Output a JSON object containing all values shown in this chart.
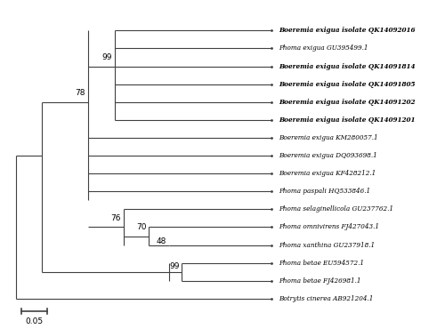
{
  "taxa": [
    {
      "name": "Boeremia exigua isolate QK14092016",
      "bold": true,
      "italic_part": "Boeremia exigua",
      "bold_part": "isolate QK14092016",
      "y": 1
    },
    {
      "name": "Phoma exigua GU395499.1",
      "bold": false,
      "italic_part": "Phoma exigua",
      "bold_part": "GU395499.1",
      "y": 2
    },
    {
      "name": "Boeremia exigua isolate QK14091814",
      "bold": true,
      "italic_part": "Boeremia exigua",
      "bold_part": "isolate QK14091814",
      "y": 3
    },
    {
      "name": "Boeremia exigua isolate QK14091805",
      "bold": true,
      "italic_part": "Boeremia exigua",
      "bold_part": "isolate QK14091805",
      "y": 4
    },
    {
      "name": "Boeremia exigua isolate QK14091202",
      "bold": true,
      "italic_part": "Boeremia exigua",
      "bold_part": "isolate QK14091202",
      "y": 5
    },
    {
      "name": "Boeremia exigua isolate QK14091201",
      "bold": true,
      "italic_part": "Boeremia exigua",
      "bold_part": "isolate QK14091201",
      "y": 6
    },
    {
      "name": "Boeremia exigua KM280057.1",
      "bold": false,
      "italic_part": "Boeremia exigua",
      "bold_part": "KM280057.1",
      "y": 7
    },
    {
      "name": "Boeremia exigua DQ093698.1",
      "bold": false,
      "italic_part": "Boeremia exigua",
      "bold_part": "DQ093698.1",
      "y": 8
    },
    {
      "name": "Boeremia exigua KF428212.1",
      "bold": false,
      "italic_part": "Boeremia exigua",
      "bold_part": "KF428212.1",
      "y": 9
    },
    {
      "name": "Phoma paspali HQ533846.1",
      "bold": false,
      "italic_part": "Phoma paspali",
      "bold_part": "HQ533846.1",
      "y": 10
    },
    {
      "name": "Phoma selaginellicola GU237762.1",
      "bold": false,
      "italic_part": "Phoma selaginellicola",
      "bold_part": "GU237762.1",
      "y": 11
    },
    {
      "name": "Phoma omnivirens FJ427043.1",
      "bold": false,
      "italic_part": "Phoma omnivirens",
      "bold_part": "FJ427043.1",
      "y": 12
    },
    {
      "name": "Phoma xanthina GU237918.1",
      "bold": false,
      "italic_part": "Phoma xanthina",
      "bold_part": "GU237918.1",
      "y": 13
    },
    {
      "name": "Phoma betae EU594572.1",
      "bold": false,
      "italic_part": "Phoma betae",
      "bold_part": "EU594572.1",
      "y": 14
    },
    {
      "name": "Phoma betae FJ426981.1",
      "bold": false,
      "italic_part": "Phoma betae",
      "bold_part": "FJ426981.1",
      "y": 15
    },
    {
      "name": "Botrytis cinerea AB921204.1",
      "bold": false,
      "italic_part": "Botrytis cinerea",
      "bold_part": "AB921204.1",
      "y": 16
    }
  ],
  "background_color": "#ffffff",
  "line_color": "#404040",
  "text_color": "#000000",
  "scale_bar_label": "0.05"
}
